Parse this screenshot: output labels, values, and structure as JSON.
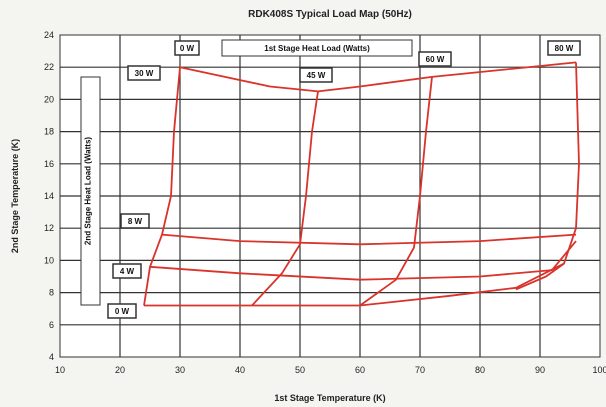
{
  "chart_data": {
    "type": "line",
    "title": "RDK408S Typical Load Map (50Hz)",
    "xlabel": "1st Stage Temperature (K)",
    "ylabel": "2nd Stage Temperature (K)",
    "xlim": [
      10,
      100
    ],
    "ylim": [
      4,
      24
    ],
    "x_ticks": [
      10,
      20,
      30,
      40,
      50,
      60,
      70,
      80,
      90,
      100
    ],
    "y_ticks": [
      4,
      6,
      8,
      10,
      12,
      14,
      16,
      18,
      20,
      22,
      24
    ],
    "grid": true,
    "legend_1st": "1st Stage Heat Load (Watts)",
    "legend_2nd": "2nd Stage Heat Load (Watts)",
    "labels_1st": [
      "0 W",
      "30 W",
      "45 W",
      "60 W",
      "80 W"
    ],
    "labels_2nd": [
      "0 W",
      "4 W",
      "8 W"
    ],
    "series": [
      {
        "name": "1st 0 W",
        "color": "#d9332b",
        "points": [
          [
            24,
            7.2
          ],
          [
            25,
            9.6
          ],
          [
            27,
            11.6
          ],
          [
            28.5,
            14
          ],
          [
            29,
            18
          ],
          [
            30,
            22
          ]
        ]
      },
      {
        "name": "1st 45 W",
        "color": "#d9332b",
        "points": [
          [
            42,
            7.2
          ],
          [
            47,
            9.2
          ],
          [
            50,
            11
          ],
          [
            51,
            14
          ],
          [
            52,
            18
          ],
          [
            53,
            20.5
          ]
        ]
      },
      {
        "name": "1st 60 W",
        "color": "#d9332b",
        "points": [
          [
            60,
            7.2
          ],
          [
            66,
            8.8
          ],
          [
            69,
            10.8
          ],
          [
            70,
            14
          ],
          [
            71,
            18
          ],
          [
            72,
            21.4
          ]
        ]
      },
      {
        "name": "1st 80 W",
        "color": "#d9332b",
        "points": [
          [
            96,
            22.3
          ],
          [
            96.5,
            16
          ],
          [
            96,
            12
          ],
          [
            94,
            9.8
          ],
          [
            91,
            9
          ],
          [
            86,
            8.2
          ]
        ]
      },
      {
        "name": "2nd 0 W",
        "color": "#d9332b",
        "points": [
          [
            24,
            7.2
          ],
          [
            40,
            7.2
          ],
          [
            60,
            7.2
          ],
          [
            75,
            7.8
          ],
          [
            86,
            8.3
          ],
          [
            94,
            9.8
          ]
        ]
      },
      {
        "name": "2nd 4 W",
        "color": "#d9332b",
        "points": [
          [
            25,
            9.6
          ],
          [
            40,
            9.2
          ],
          [
            60,
            8.8
          ],
          [
            80,
            9
          ],
          [
            92,
            9.4
          ],
          [
            96,
            11.2
          ]
        ]
      },
      {
        "name": "2nd 8 W",
        "color": "#d9332b",
        "points": [
          [
            27,
            11.6
          ],
          [
            40,
            11.2
          ],
          [
            60,
            11
          ],
          [
            80,
            11.2
          ],
          [
            96,
            11.6
          ]
        ]
      },
      {
        "name": "1st top load",
        "color": "#d9332b",
        "points": [
          [
            30,
            22
          ],
          [
            45,
            20.8
          ],
          [
            53,
            20.5
          ],
          [
            60,
            20.8
          ],
          [
            72,
            21.4
          ],
          [
            96,
            22.3
          ]
        ]
      }
    ]
  }
}
